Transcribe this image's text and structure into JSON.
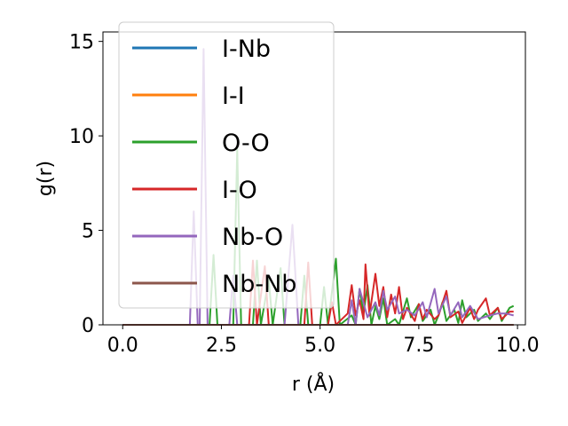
{
  "chart_data": {
    "type": "line",
    "xlabel": "r (Å)",
    "ylabel": "g(r)",
    "xlim": [
      -0.5,
      10.2
    ],
    "ylim": [
      0,
      15.5
    ],
    "xticks": [
      0.0,
      2.5,
      5.0,
      7.5,
      10.0
    ],
    "xtick_labels": [
      "0.0",
      "2.5",
      "5.0",
      "7.5",
      "10.0"
    ],
    "yticks": [
      0,
      5,
      10,
      15
    ],
    "ytick_labels": [
      "0",
      "5",
      "10",
      "15"
    ],
    "grid": false,
    "legend_position": "upper-left",
    "series": [
      {
        "name": "I-Nb",
        "color": "#1f77b4",
        "points": [
          [
            0,
            0
          ],
          [
            9.9,
            0
          ]
        ]
      },
      {
        "name": "I-I",
        "color": "#ff7f0e",
        "points": [
          [
            0,
            0
          ],
          [
            9.9,
            0
          ]
        ]
      },
      {
        "name": "O-O",
        "color": "#2ca02c",
        "points": [
          [
            0,
            0
          ],
          [
            2.2,
            0
          ],
          [
            2.3,
            3.7
          ],
          [
            2.4,
            0
          ],
          [
            2.8,
            0
          ],
          [
            2.9,
            9.3
          ],
          [
            3.0,
            0
          ],
          [
            3.3,
            0
          ],
          [
            3.4,
            3.4
          ],
          [
            3.5,
            0
          ],
          [
            3.7,
            2.4
          ],
          [
            3.8,
            0
          ],
          [
            4.0,
            3.0
          ],
          [
            4.1,
            0
          ],
          [
            4.5,
            0
          ],
          [
            4.6,
            2.6
          ],
          [
            4.7,
            0
          ],
          [
            5.0,
            0
          ],
          [
            5.1,
            2.0
          ],
          [
            5.2,
            0
          ],
          [
            5.4,
            3.5
          ],
          [
            5.5,
            0
          ],
          [
            5.8,
            0.5
          ],
          [
            5.9,
            0
          ],
          [
            6.0,
            1.9
          ],
          [
            6.1,
            0.6
          ],
          [
            6.2,
            2.1
          ],
          [
            6.3,
            0
          ],
          [
            6.4,
            1.0
          ],
          [
            6.5,
            0.3
          ],
          [
            6.6,
            1.4
          ],
          [
            6.7,
            0
          ],
          [
            6.9,
            0.3
          ],
          [
            7.0,
            0
          ],
          [
            7.2,
            1.4
          ],
          [
            7.3,
            0.4
          ],
          [
            7.5,
            1.1
          ],
          [
            7.6,
            0.2
          ],
          [
            7.8,
            0.8
          ],
          [
            7.9,
            0
          ],
          [
            8.0,
            0.5
          ],
          [
            8.1,
            1.2
          ],
          [
            8.2,
            0.2
          ],
          [
            8.4,
            0.8
          ],
          [
            8.5,
            0.1
          ],
          [
            8.6,
            1.3
          ],
          [
            8.7,
            0.4
          ],
          [
            8.9,
            0.8
          ],
          [
            9.0,
            0.2
          ],
          [
            9.2,
            0.6
          ],
          [
            9.3,
            0.3
          ],
          [
            9.5,
            0.9
          ],
          [
            9.6,
            0.2
          ],
          [
            9.8,
            0.9
          ],
          [
            9.9,
            1.0
          ]
        ]
      },
      {
        "name": "I-O",
        "color": "#d62728",
        "points": [
          [
            0,
            0
          ],
          [
            3.2,
            0
          ],
          [
            3.3,
            3.4
          ],
          [
            3.4,
            0
          ],
          [
            3.6,
            3.1
          ],
          [
            3.7,
            0
          ],
          [
            4.6,
            0
          ],
          [
            4.7,
            3.3
          ],
          [
            4.8,
            0
          ],
          [
            5.2,
            0
          ],
          [
            5.3,
            1.2
          ],
          [
            5.4,
            0
          ],
          [
            5.7,
            0.6
          ],
          [
            5.8,
            2.1
          ],
          [
            5.9,
            0.5
          ],
          [
            6.0,
            1.3
          ],
          [
            6.1,
            0.3
          ],
          [
            6.15,
            3.2
          ],
          [
            6.25,
            0.5
          ],
          [
            6.4,
            2.7
          ],
          [
            6.5,
            1.0
          ],
          [
            6.6,
            2.0
          ],
          [
            6.7,
            0.4
          ],
          [
            6.8,
            1.6
          ],
          [
            6.9,
            0.6
          ],
          [
            7.0,
            2.0
          ],
          [
            7.1,
            0.3
          ],
          [
            7.2,
            0.9
          ],
          [
            7.4,
            0.2
          ],
          [
            7.5,
            1.1
          ],
          [
            7.6,
            0.3
          ],
          [
            7.7,
            0.8
          ],
          [
            7.9,
            0.3
          ],
          [
            8.0,
            0.5
          ],
          [
            8.2,
            1.8
          ],
          [
            8.3,
            0.4
          ],
          [
            8.5,
            0.7
          ],
          [
            8.6,
            0.1
          ],
          [
            8.8,
            0.9
          ],
          [
            8.9,
            0.3
          ],
          [
            9.0,
            0.8
          ],
          [
            9.2,
            1.4
          ],
          [
            9.3,
            0.5
          ],
          [
            9.5,
            0.9
          ],
          [
            9.6,
            0.3
          ],
          [
            9.8,
            0.7
          ],
          [
            9.9,
            0.7
          ]
        ]
      },
      {
        "name": "Nb-O",
        "color": "#9467bd",
        "points": [
          [
            0,
            0
          ],
          [
            1.7,
            0
          ],
          [
            1.8,
            6.0
          ],
          [
            1.9,
            0
          ],
          [
            1.95,
            0
          ],
          [
            2.05,
            14.6
          ],
          [
            2.15,
            0
          ],
          [
            2.7,
            0
          ],
          [
            2.8,
            2.6
          ],
          [
            2.9,
            0
          ],
          [
            4.1,
            0
          ],
          [
            4.3,
            5.3
          ],
          [
            4.45,
            0
          ],
          [
            5.7,
            0
          ],
          [
            5.8,
            1.3
          ],
          [
            5.9,
            0
          ],
          [
            6.0,
            1.9
          ],
          [
            6.2,
            0.4
          ],
          [
            6.4,
            1.2
          ],
          [
            6.5,
            0.5
          ],
          [
            6.6,
            1.8
          ],
          [
            6.7,
            0.8
          ],
          [
            6.9,
            1.5
          ],
          [
            7.0,
            0.6
          ],
          [
            7.2,
            0.8
          ],
          [
            7.4,
            0.5
          ],
          [
            7.6,
            1.2
          ],
          [
            7.7,
            0.4
          ],
          [
            7.9,
            1.9
          ],
          [
            8.0,
            0.6
          ],
          [
            8.2,
            1.5
          ],
          [
            8.3,
            0.5
          ],
          [
            8.5,
            1.2
          ],
          [
            8.6,
            0.4
          ],
          [
            8.8,
            1.0
          ],
          [
            9.0,
            0.3
          ],
          [
            9.3,
            0.5
          ],
          [
            9.5,
            0.6
          ],
          [
            9.7,
            0.6
          ],
          [
            9.9,
            0.5
          ]
        ]
      },
      {
        "name": "Nb-Nb",
        "color": "#8c564b",
        "points": [
          [
            0,
            0
          ],
          [
            9.9,
            0
          ]
        ]
      }
    ]
  }
}
